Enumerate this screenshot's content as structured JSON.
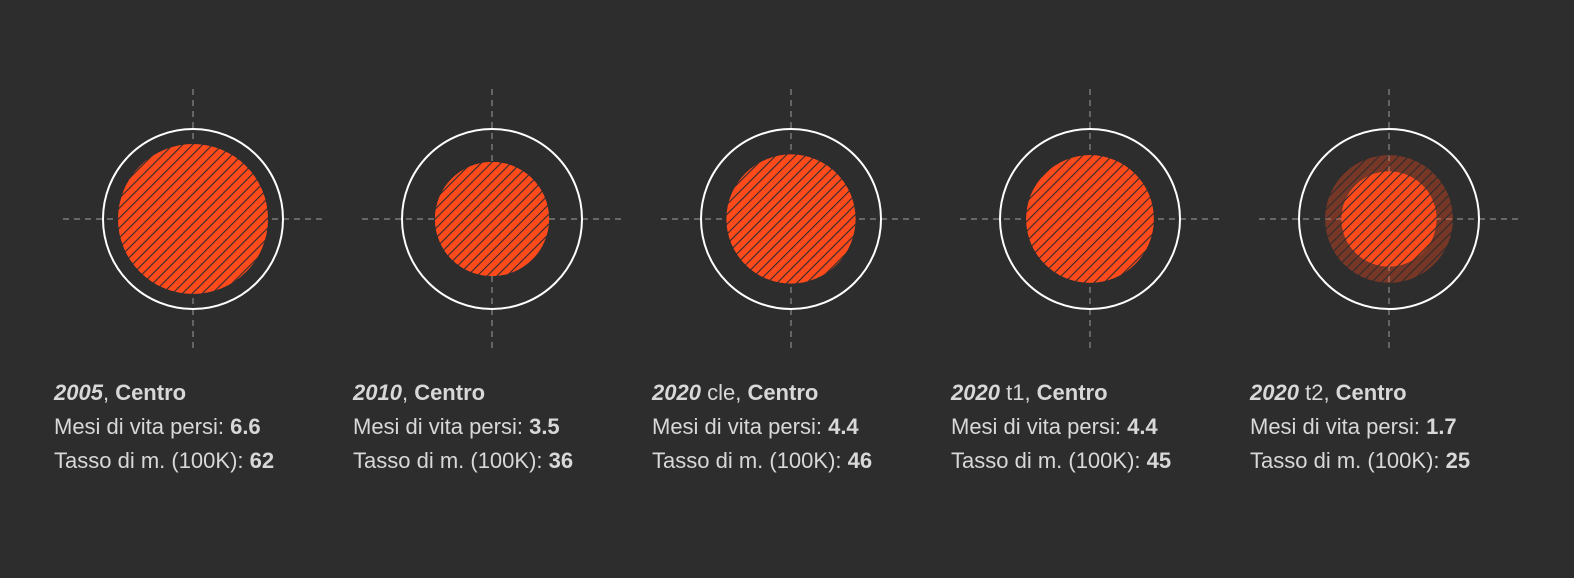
{
  "chart_data": {
    "type": "proportional-circles",
    "colors": {
      "background": "#2d2d2d",
      "ring": "#ffffff",
      "fill": "#ff4a1c",
      "hatch": "#2d2d2d",
      "crosshair": "#8a8a8a",
      "text": "#d8d8d8"
    },
    "months_label": "Mesi di vita persi:",
    "rate_label": "Tasso di m. (100K):",
    "panels": [
      {
        "year": "2005",
        "suffix": "",
        "area": "Centro",
        "months_lost": "6.6",
        "rate": "62",
        "months_value": 6.6,
        "rate_value": 62,
        "ghost_rate": null
      },
      {
        "year": "2010",
        "suffix": "",
        "area": "Centro",
        "months_lost": "3.5",
        "rate": "36",
        "months_value": 3.5,
        "rate_value": 36,
        "ghost_rate": null
      },
      {
        "year": "2020",
        "suffix": "cle",
        "area": "Centro",
        "months_lost": "4.4",
        "rate": "46",
        "months_value": 4.4,
        "rate_value": 46,
        "ghost_rate": null
      },
      {
        "year": "2020",
        "suffix": "t1",
        "area": "Centro",
        "months_lost": "4.4",
        "rate": "45",
        "months_value": 4.4,
        "rate_value": 45,
        "ghost_rate": null
      },
      {
        "year": "2020",
        "suffix": "t2",
        "area": "Centro",
        "months_lost": "1.7",
        "rate": "25",
        "months_value": 1.7,
        "rate_value": 25,
        "ghost_rate": 45
      }
    ]
  }
}
